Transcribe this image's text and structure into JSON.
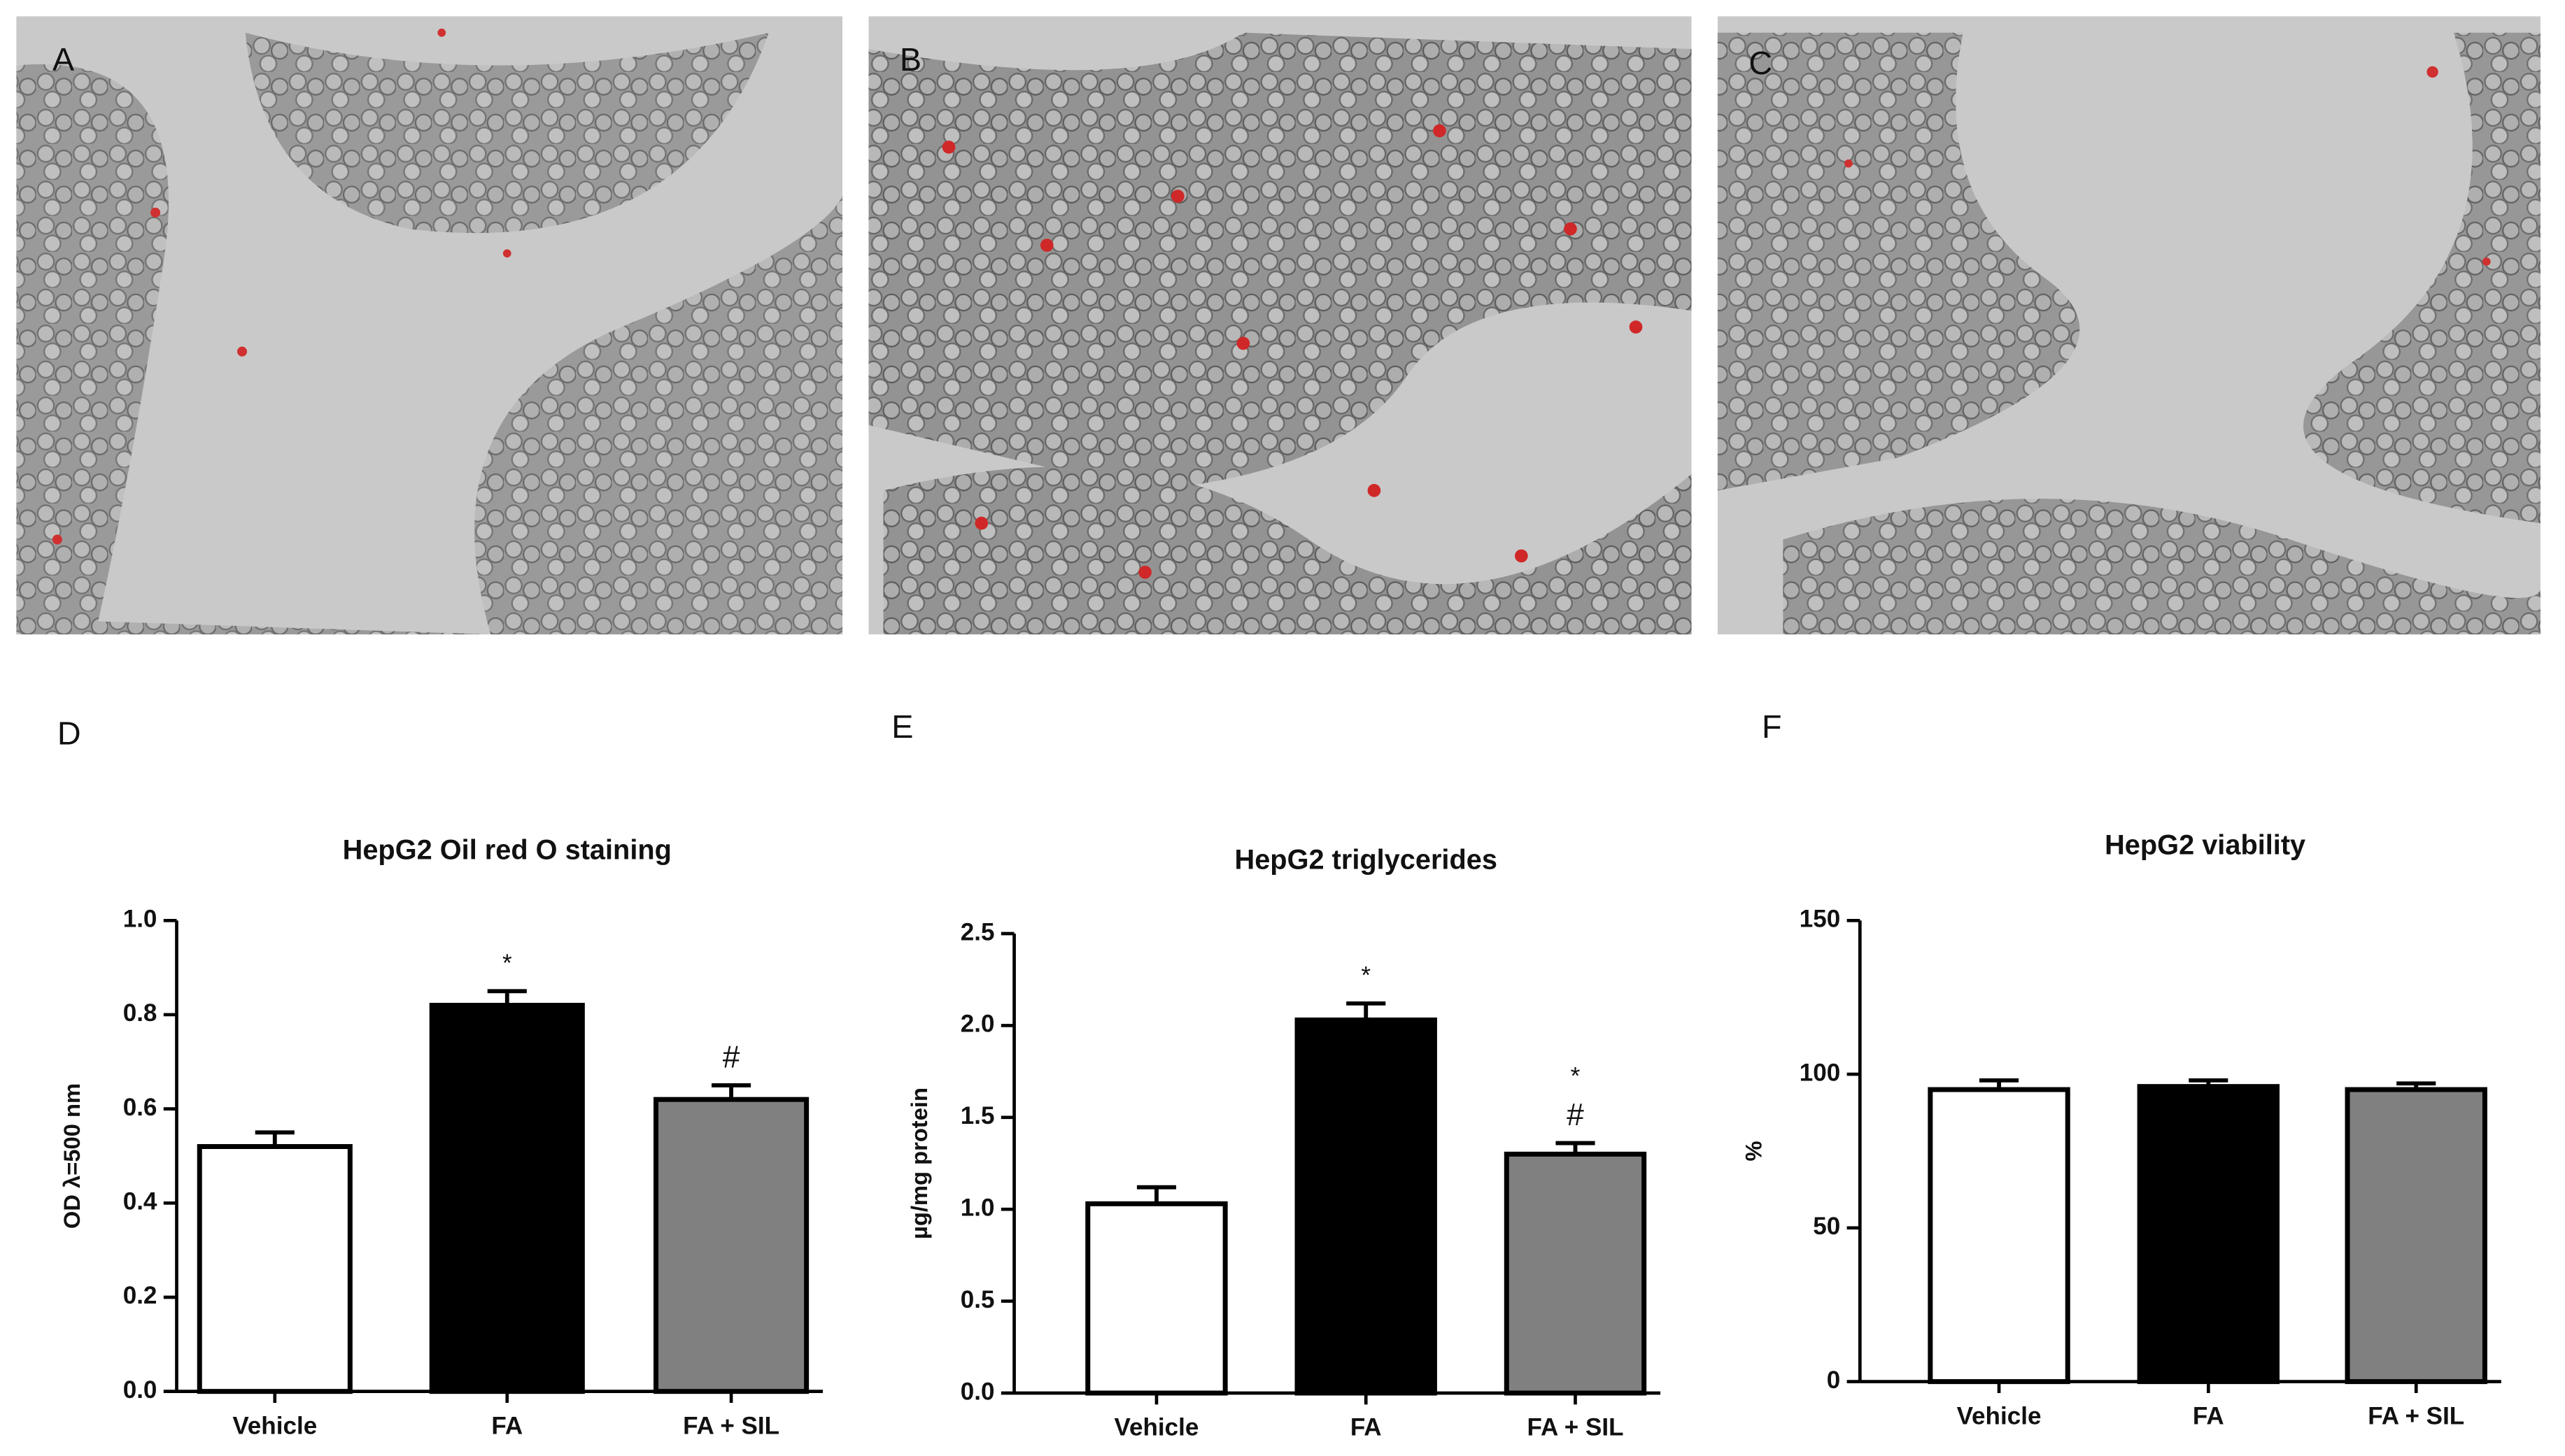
{
  "image_panels": [
    {
      "label": "A"
    },
    {
      "label": "B"
    },
    {
      "label": "C"
    }
  ],
  "chart_data": [
    {
      "type": "bar",
      "panel_label": "D",
      "title": "HepG2 Oil red O staining",
      "y_label": "OD λ=500 nm",
      "categories": [
        "Vehicle",
        "FA",
        "FA + SIL"
      ],
      "values": [
        0.52,
        0.82,
        0.62
      ],
      "errors": [
        0.03,
        0.03,
        0.03
      ],
      "colors": [
        "#ffffff",
        "#000000",
        "#808080"
      ],
      "annotations": [
        [],
        [
          "*"
        ],
        [
          "#"
        ]
      ],
      "ylim": [
        0,
        1.0
      ],
      "yticks": [
        {
          "value": 0,
          "label": "0.0"
        },
        {
          "value": 0.2,
          "label": "0.2"
        },
        {
          "value": 0.4,
          "label": "0.4"
        },
        {
          "value": 0.6,
          "label": "0.6"
        },
        {
          "value": 0.8,
          "label": "0.8"
        },
        {
          "value": 1.0,
          "label": "1.0"
        }
      ]
    },
    {
      "type": "bar",
      "panel_label": "E",
      "title": "HepG2 triglycerides",
      "y_label": "µg/mg protein",
      "categories": [
        "Vehicle",
        "FA",
        "FA + SIL"
      ],
      "values": [
        1.03,
        2.03,
        1.3
      ],
      "errors": [
        0.09,
        0.09,
        0.06
      ],
      "colors": [
        "#ffffff",
        "#000000",
        "#808080"
      ],
      "annotations": [
        [],
        [
          "*"
        ],
        [
          "*",
          "#"
        ]
      ],
      "ylim": [
        0,
        2.5
      ],
      "yticks": [
        {
          "value": 0,
          "label": "0.0"
        },
        {
          "value": 0.5,
          "label": "0.5"
        },
        {
          "value": 1.0,
          "label": "1.0"
        },
        {
          "value": 1.5,
          "label": "1.5"
        },
        {
          "value": 2.0,
          "label": "2.0"
        },
        {
          "value": 2.5,
          "label": "2.5"
        }
      ]
    },
    {
      "type": "bar",
      "panel_label": "F",
      "title": "HepG2 viability",
      "y_label": "%",
      "categories": [
        "Vehicle",
        "FA",
        "FA + SIL"
      ],
      "values": [
        95,
        96,
        95
      ],
      "errors": [
        3,
        2,
        2
      ],
      "colors": [
        "#ffffff",
        "#000000",
        "#808080"
      ],
      "annotations": [
        [],
        [],
        []
      ],
      "ylim": [
        0,
        150
      ],
      "yticks": [
        0,
        50,
        100,
        150
      ]
    }
  ]
}
